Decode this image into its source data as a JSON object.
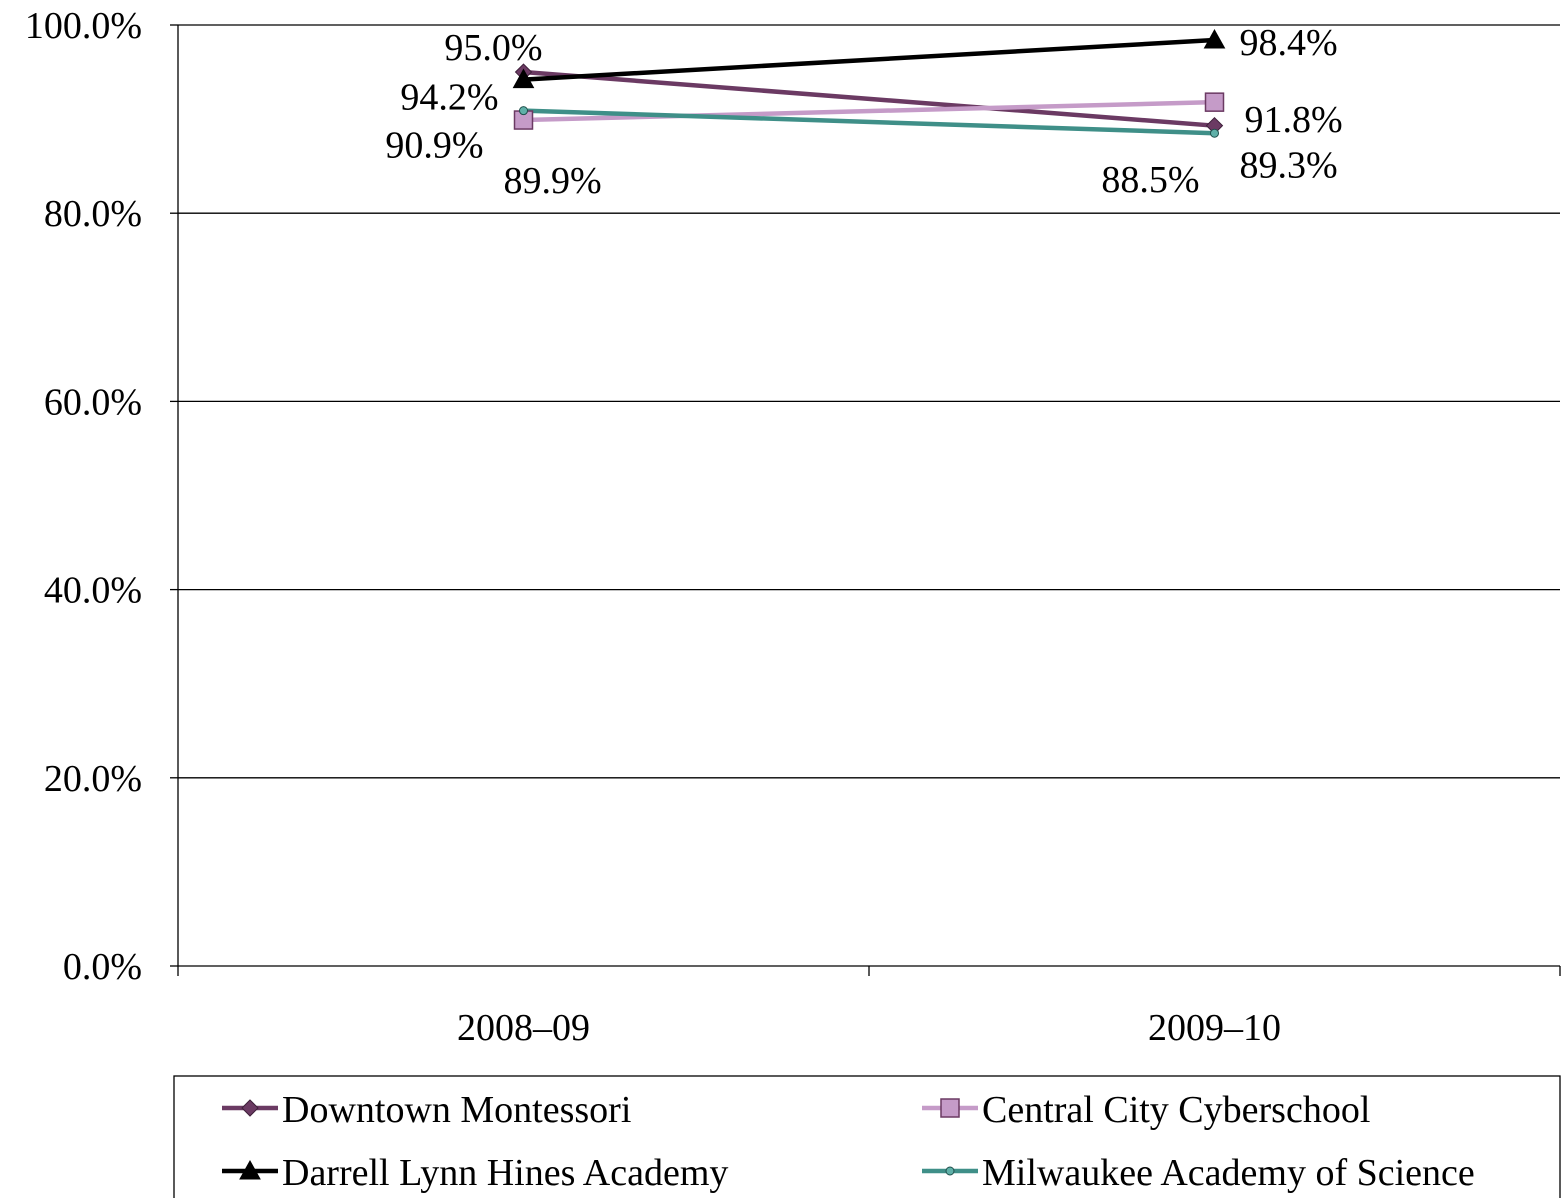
{
  "chart_data": {
    "type": "line",
    "categories": [
      "2008–09",
      "2009–10"
    ],
    "ylim": [
      0,
      100
    ],
    "yticks": [
      0,
      20,
      40,
      60,
      80,
      100
    ],
    "ytick_labels": [
      "0.0%",
      "20.0%",
      "40.0%",
      "60.0%",
      "80.0%",
      "100.0%"
    ],
    "grid": true,
    "legend_position": "bottom",
    "series": [
      {
        "name": "Downtown Montessori",
        "values": [
          95.0,
          89.3
        ],
        "labels": [
          "95.0%",
          "89.3%"
        ],
        "color": "#6b3a63",
        "marker": "diamond"
      },
      {
        "name": "Central City Cyberschool",
        "values": [
          89.9,
          91.8
        ],
        "labels": [
          "89.9%",
          "91.8%"
        ],
        "color": "#c59bc8",
        "marker": "square"
      },
      {
        "name": "Darrell Lynn Hines Academy",
        "values": [
          94.2,
          98.4
        ],
        "labels": [
          "94.2%",
          "98.4%"
        ],
        "color": "#000000",
        "marker": "triangle"
      },
      {
        "name": "Milwaukee Academy of Science",
        "values": [
          90.9,
          88.5
        ],
        "labels": [
          "90.9%",
          "88.5%"
        ],
        "color": "#3f8f88",
        "marker": "circle"
      }
    ]
  }
}
